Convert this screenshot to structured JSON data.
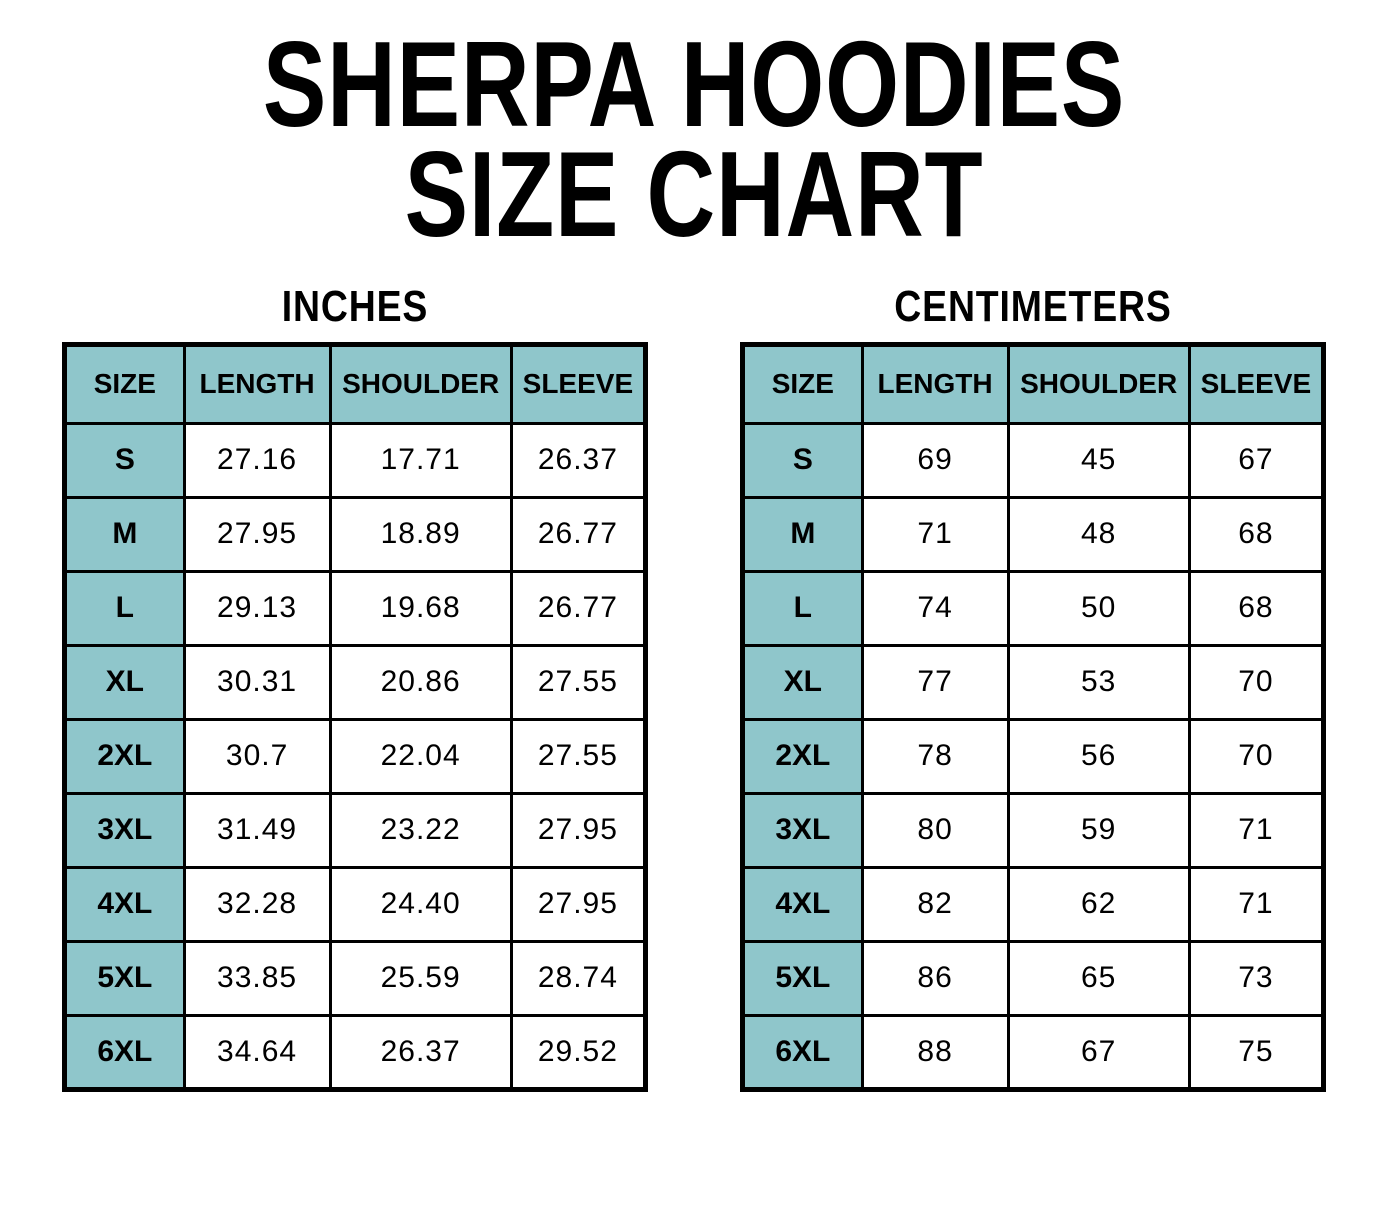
{
  "title": {
    "line1": "SHERPA HOODIES",
    "line2": "SIZE CHART"
  },
  "chart_data": [
    {
      "type": "table",
      "title": "INCHES",
      "columns": [
        "SIZE",
        "LENGTH",
        "SHOULDER",
        "SLEEVE"
      ],
      "rows": [
        [
          "S",
          "27.16",
          "17.71",
          "26.37"
        ],
        [
          "M",
          "27.95",
          "18.89",
          "26.77"
        ],
        [
          "L",
          "29.13",
          "19.68",
          "26.77"
        ],
        [
          "XL",
          "30.31",
          "20.86",
          "27.55"
        ],
        [
          "2XL",
          "30.7",
          "22.04",
          "27.55"
        ],
        [
          "3XL",
          "31.49",
          "23.22",
          "27.95"
        ],
        [
          "4XL",
          "32.28",
          "24.40",
          "27.95"
        ],
        [
          "5XL",
          "33.85",
          "25.59",
          "28.74"
        ],
        [
          "6XL",
          "34.64",
          "26.37",
          "29.52"
        ]
      ]
    },
    {
      "type": "table",
      "title": "CENTIMETERS",
      "columns": [
        "SIZE",
        "LENGTH",
        "SHOULDER",
        "SLEEVE"
      ],
      "rows": [
        [
          "S",
          "69",
          "45",
          "67"
        ],
        [
          "M",
          "71",
          "48",
          "68"
        ],
        [
          "L",
          "74",
          "50",
          "68"
        ],
        [
          "XL",
          "77",
          "53",
          "70"
        ],
        [
          "2XL",
          "78",
          "56",
          "70"
        ],
        [
          "3XL",
          "80",
          "59",
          "71"
        ],
        [
          "4XL",
          "82",
          "62",
          "71"
        ],
        [
          "5XL",
          "86",
          "65",
          "73"
        ],
        [
          "6XL",
          "88",
          "67",
          "75"
        ]
      ]
    }
  ],
  "colors": {
    "header_fill": "#8FC6CB",
    "border": "#000000",
    "background": "#FFFFFF",
    "text": "#000000"
  }
}
